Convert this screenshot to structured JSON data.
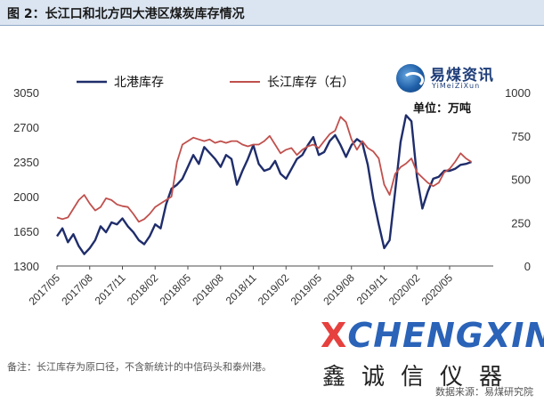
{
  "figure_title": "图 2：长江口和北方四大港区煤炭库存情况",
  "logo": {
    "cn": "易煤资讯",
    "en": "YiMeiZiXun"
  },
  "unit_label": "单位：万吨",
  "note": "备注：长江库存为原口径，不含新统计的中信码头和泰州港。",
  "source": "数据来源：易煤研究院",
  "watermark": {
    "en_x": "X",
    "en_rest": "CHENGXIN",
    "cn": "鑫诚信仪器"
  },
  "colors": {
    "north": "#1f2d6b",
    "yangtze": "#c0504d",
    "axis": "#4d4d4d"
  },
  "chart_data": {
    "type": "line",
    "title": "",
    "legend": [
      "北港库存",
      "长江库存（右）"
    ],
    "legend_placement": "top-left",
    "x_ticks": [
      "2017/05",
      "2017/08",
      "2017/11",
      "2018/02",
      "2018/05",
      "2018/08",
      "2018/11",
      "2019/02",
      "2019/05",
      "2019/08",
      "2019/11",
      "2020/02",
      "2020/05"
    ],
    "x_range": [
      0,
      40
    ],
    "y_left": {
      "ticks": [
        1300,
        1650,
        2000,
        2350,
        2700,
        3050
      ],
      "range": [
        1300,
        3050
      ]
    },
    "y_right": {
      "ticks": [
        0,
        250,
        500,
        750,
        1000
      ],
      "range": [
        0,
        1000
      ]
    },
    "grid": false,
    "series": [
      {
        "name": "北港库存",
        "axis": "left",
        "x": [
          0,
          0.5,
          1,
          1.5,
          2,
          2.5,
          3,
          3.5,
          4,
          4.5,
          5,
          5.5,
          6,
          6.5,
          7,
          7.5,
          8,
          8.5,
          9,
          9.5,
          10,
          10.5,
          11,
          11.5,
          12,
          12.5,
          13,
          13.5,
          14,
          14.5,
          15,
          15.5,
          16,
          16.5,
          17,
          17.5,
          18,
          18.5,
          19,
          19.5,
          20,
          20.5,
          21,
          21.5,
          22,
          22.5,
          23,
          23.5,
          24,
          24.5,
          25,
          25.5,
          26,
          26.5,
          27,
          27.5,
          28,
          28.5,
          29,
          29.5,
          30,
          30.5,
          31,
          31.5,
          32,
          32.5,
          33,
          33.5,
          34,
          34.5,
          35,
          35.5,
          36,
          36.5,
          37,
          37.5,
          38
        ],
        "y": [
          1600,
          1680,
          1540,
          1620,
          1500,
          1420,
          1480,
          1560,
          1700,
          1640,
          1740,
          1720,
          1780,
          1700,
          1640,
          1560,
          1520,
          1600,
          1720,
          1680,
          1920,
          2080,
          2120,
          2180,
          2300,
          2420,
          2330,
          2500,
          2440,
          2380,
          2300,
          2420,
          2380,
          2120,
          2260,
          2380,
          2520,
          2330,
          2260,
          2280,
          2360,
          2230,
          2180,
          2280,
          2380,
          2420,
          2520,
          2600,
          2420,
          2450,
          2560,
          2620,
          2520,
          2400,
          2520,
          2580,
          2540,
          2320,
          1980,
          1720,
          1480,
          1560,
          2050,
          2550,
          2820,
          2760,
          2200,
          1880,
          2050,
          2180,
          2200,
          2260,
          2260,
          2280,
          2320,
          2330,
          2350
        ]
      },
      {
        "name": "长江库存（右）",
        "axis": "right",
        "x": [
          0,
          0.5,
          1,
          1.5,
          2,
          2.5,
          3,
          3.5,
          4,
          4.5,
          5,
          5.5,
          6,
          6.5,
          7,
          7.5,
          8,
          8.5,
          9,
          9.5,
          10,
          10.5,
          11,
          11.5,
          12,
          12.5,
          13,
          13.5,
          14,
          14.5,
          15,
          15.5,
          16,
          16.5,
          17,
          17.5,
          18,
          18.5,
          19,
          19.5,
          20,
          20.5,
          21,
          21.5,
          22,
          22.5,
          23,
          23.5,
          24,
          24.5,
          25,
          25.5,
          26,
          26.5,
          27,
          27.5,
          28,
          28.5,
          29,
          29.5,
          30,
          30.5,
          31,
          31.5,
          32,
          32.5,
          33,
          33.5,
          34,
          34.5,
          35,
          35.5,
          36,
          36.5,
          37,
          37.5,
          38
        ],
        "y": [
          280,
          270,
          280,
          330,
          380,
          410,
          360,
          320,
          340,
          390,
          380,
          355,
          345,
          340,
          300,
          255,
          270,
          300,
          340,
          360,
          380,
          400,
          600,
          700,
          720,
          740,
          730,
          720,
          730,
          710,
          720,
          710,
          720,
          720,
          700,
          690,
          700,
          700,
          720,
          750,
          700,
          650,
          670,
          680,
          640,
          670,
          690,
          700,
          680,
          720,
          760,
          780,
          860,
          830,
          730,
          670,
          720,
          680,
          660,
          620,
          470,
          410,
          530,
          570,
          590,
          620,
          540,
          510,
          480,
          460,
          480,
          540,
          560,
          600,
          650,
          620,
          600
        ]
      }
    ]
  }
}
